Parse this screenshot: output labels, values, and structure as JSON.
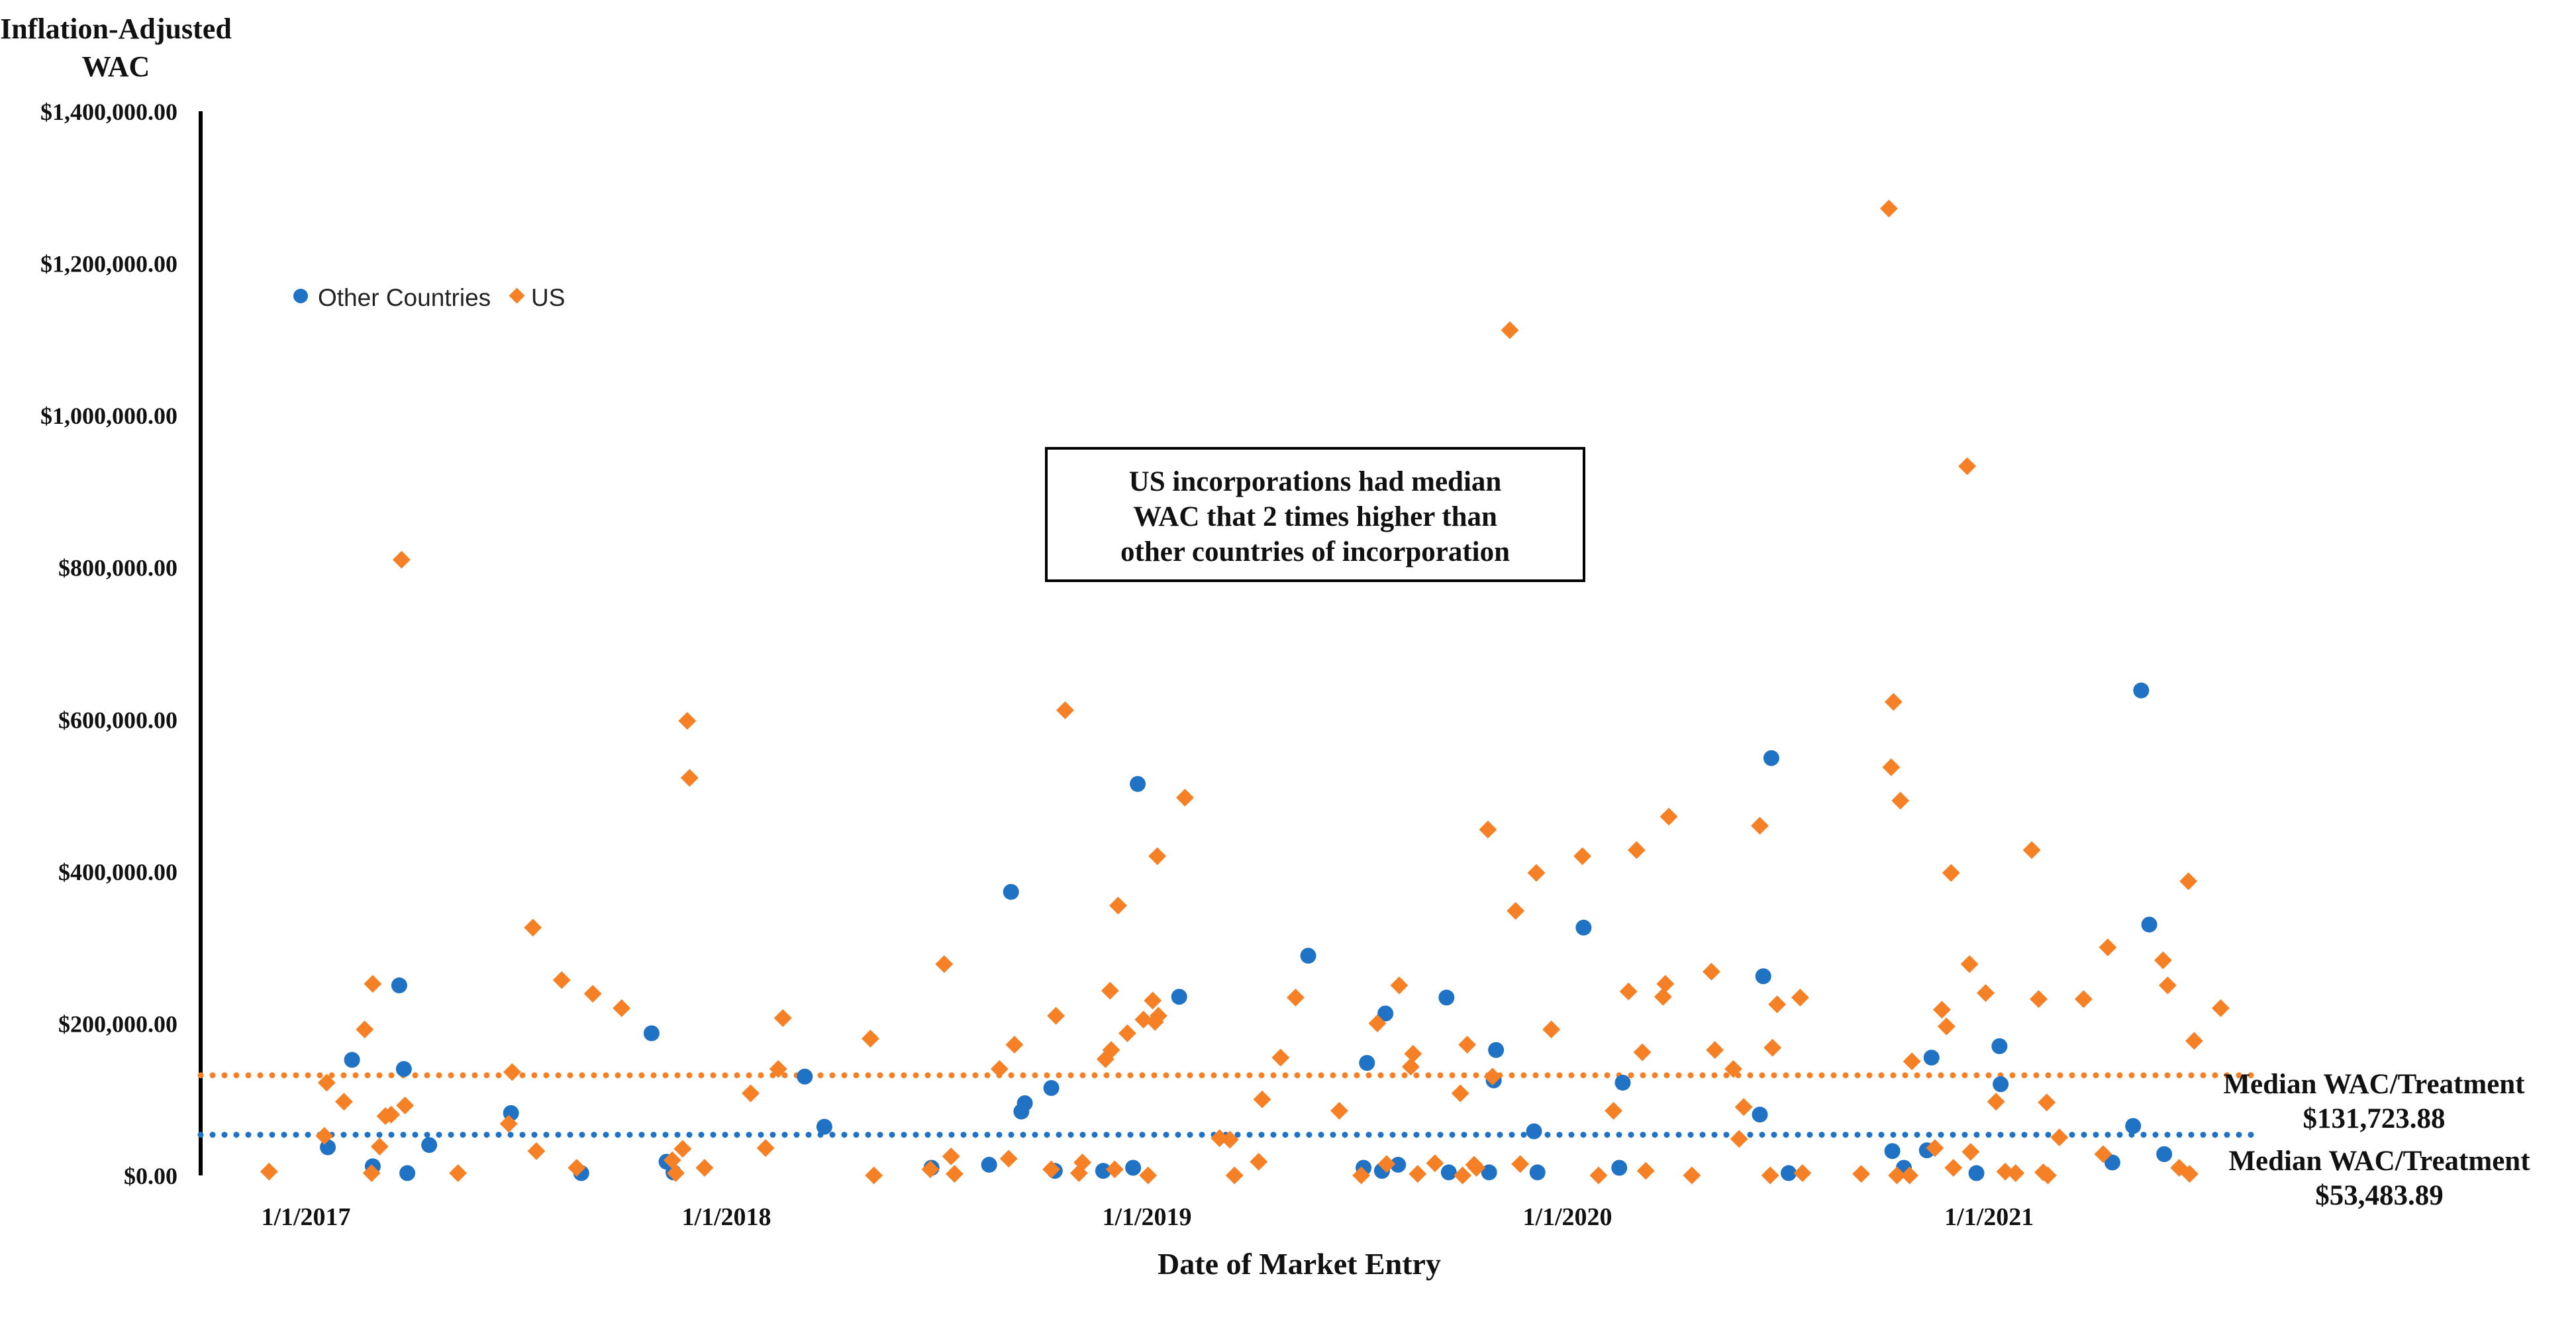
{
  "chart_data": {
    "type": "scatter",
    "title": "",
    "ylabel": "Inflation-Adjusted WAC",
    "ylabel_lines": [
      "Inflation-Adjusted",
      "WAC"
    ],
    "xlabel": "Date of Market Entry",
    "ylim": [
      0,
      1400000
    ],
    "xlim": [
      "2016-08-01",
      "2021-10-01"
    ],
    "y_ticks": [
      {
        "value": 0,
        "label": "$0.00"
      },
      {
        "value": 200000,
        "label": "$200,000.00"
      },
      {
        "value": 400000,
        "label": "$400,000.00"
      },
      {
        "value": 600000,
        "label": "$600,000.00"
      },
      {
        "value": 800000,
        "label": "$800,000.00"
      },
      {
        "value": 1000000,
        "label": "$1,000,000.00"
      },
      {
        "value": 1200000,
        "label": "$1,200,000.00"
      },
      {
        "value": 1400000,
        "label": "$1,400,000.00"
      }
    ],
    "x_ticks": [
      {
        "value": "2017-01-01",
        "label": "1/1/2017"
      },
      {
        "value": "2018-01-01",
        "label": "1/1/2018"
      },
      {
        "value": "2019-01-01",
        "label": "1/1/2019"
      },
      {
        "value": "2020-01-01",
        "label": "1/1/2020"
      },
      {
        "value": "2021-01-01",
        "label": "1/1/2021"
      }
    ],
    "legend": {
      "placement": "top-left",
      "entries": [
        "Other Countries",
        "US"
      ]
    },
    "annotation": {
      "lines": [
        "US incorporations had median",
        "WAC that  2 times  higher than",
        "other countries of incorporation"
      ]
    },
    "median_lines": [
      {
        "series": "US",
        "value": 131723.88,
        "label_line1": "Median WAC/Treatment",
        "label_line2": "$131,723.88"
      },
      {
        "series": "Other Countries",
        "value": 53483.89,
        "label_line1": "Median WAC/Treatment",
        "label_line2": "$53,483.89"
      }
    ],
    "series": [
      {
        "name": "Other Countries",
        "color": "#1f72c4",
        "marker": "circle",
        "points": [
          {
            "x": "2017-01-20",
            "y": 37000
          },
          {
            "x": "2017-02-10",
            "y": 152000
          },
          {
            "x": "2017-02-28",
            "y": 12000
          },
          {
            "x": "2017-03-23",
            "y": 250000
          },
          {
            "x": "2017-03-27",
            "y": 140000
          },
          {
            "x": "2017-03-30",
            "y": 3000
          },
          {
            "x": "2017-04-18",
            "y": 40000
          },
          {
            "x": "2017-06-28",
            "y": 82000
          },
          {
            "x": "2017-08-28",
            "y": 3000
          },
          {
            "x": "2017-10-28",
            "y": 187000
          },
          {
            "x": "2017-11-10",
            "y": 18000
          },
          {
            "x": "2017-11-16",
            "y": 4000
          },
          {
            "x": "2018-03-10",
            "y": 130000
          },
          {
            "x": "2018-03-27",
            "y": 64000
          },
          {
            "x": "2018-06-28",
            "y": 10000
          },
          {
            "x": "2018-08-17",
            "y": 14000
          },
          {
            "x": "2018-09-05",
            "y": 373000
          },
          {
            "x": "2018-09-14",
            "y": 84000
          },
          {
            "x": "2018-09-17",
            "y": 95000
          },
          {
            "x": "2018-10-10",
            "y": 115000
          },
          {
            "x": "2018-10-13",
            "y": 6000
          },
          {
            "x": "2018-11-24",
            "y": 6000
          },
          {
            "x": "2018-12-20",
            "y": 10000
          },
          {
            "x": "2018-12-24",
            "y": 515000
          },
          {
            "x": "2019-01-29",
            "y": 235000
          },
          {
            "x": "2019-05-21",
            "y": 289000
          },
          {
            "x": "2019-07-08",
            "y": 10000
          },
          {
            "x": "2019-07-11",
            "y": 148000
          },
          {
            "x": "2019-07-24",
            "y": 6000
          },
          {
            "x": "2019-07-27",
            "y": 213000
          },
          {
            "x": "2019-08-07",
            "y": 14000
          },
          {
            "x": "2019-09-18",
            "y": 234000
          },
          {
            "x": "2019-09-20",
            "y": 4000
          },
          {
            "x": "2019-10-25",
            "y": 4000
          },
          {
            "x": "2019-10-29",
            "y": 125000
          },
          {
            "x": "2019-10-31",
            "y": 165000
          },
          {
            "x": "2019-12-03",
            "y": 58000
          },
          {
            "x": "2019-12-06",
            "y": 4000
          },
          {
            "x": "2020-01-15",
            "y": 326000
          },
          {
            "x": "2020-02-15",
            "y": 10000
          },
          {
            "x": "2020-02-18",
            "y": 122000
          },
          {
            "x": "2020-06-16",
            "y": 80000
          },
          {
            "x": "2020-06-19",
            "y": 262000
          },
          {
            "x": "2020-06-26",
            "y": 549000
          },
          {
            "x": "2020-07-11",
            "y": 3000
          },
          {
            "x": "2020-10-09",
            "y": 32000
          },
          {
            "x": "2020-10-19",
            "y": 10000
          },
          {
            "x": "2020-11-08",
            "y": 33000
          },
          {
            "x": "2020-11-12",
            "y": 155000
          },
          {
            "x": "2020-12-21",
            "y": 3000
          },
          {
            "x": "2021-01-10",
            "y": 170000
          },
          {
            "x": "2021-01-11",
            "y": 120000
          },
          {
            "x": "2021-04-18",
            "y": 17000
          },
          {
            "x": "2021-05-06",
            "y": 65000
          },
          {
            "x": "2021-05-13",
            "y": 638000
          },
          {
            "x": "2021-05-20",
            "y": 330000
          },
          {
            "x": "2021-06-02",
            "y": 28000
          }
        ]
      },
      {
        "name": "US",
        "color": "#f58025",
        "marker": "diamond",
        "points": [
          {
            "x": "2016-11-30",
            "y": 5000
          },
          {
            "x": "2017-01-17",
            "y": 52000
          },
          {
            "x": "2017-01-19",
            "y": 122000
          },
          {
            "x": "2017-02-03",
            "y": 97000
          },
          {
            "x": "2017-02-21",
            "y": 192000
          },
          {
            "x": "2017-02-27",
            "y": 3000
          },
          {
            "x": "2017-02-28",
            "y": 252000
          },
          {
            "x": "2017-03-06",
            "y": 38000
          },
          {
            "x": "2017-03-11",
            "y": 78000
          },
          {
            "x": "2017-03-16",
            "y": 80000
          },
          {
            "x": "2017-03-25",
            "y": 810000
          },
          {
            "x": "2017-03-28",
            "y": 92000
          },
          {
            "x": "2017-05-13",
            "y": 3000
          },
          {
            "x": "2017-06-26",
            "y": 68000
          },
          {
            "x": "2017-06-29",
            "y": 136000
          },
          {
            "x": "2017-07-17",
            "y": 326000
          },
          {
            "x": "2017-07-20",
            "y": 32000
          },
          {
            "x": "2017-08-11",
            "y": 257000
          },
          {
            "x": "2017-08-24",
            "y": 10000
          },
          {
            "x": "2017-09-07",
            "y": 239000
          },
          {
            "x": "2017-10-02",
            "y": 220000
          },
          {
            "x": "2017-11-15",
            "y": 20000
          },
          {
            "x": "2017-11-18",
            "y": 3000
          },
          {
            "x": "2017-11-24",
            "y": 35000
          },
          {
            "x": "2017-11-28",
            "y": 598000
          },
          {
            "x": "2017-11-30",
            "y": 523000
          },
          {
            "x": "2017-12-13",
            "y": 10000
          },
          {
            "x": "2018-01-22",
            "y": 108000
          },
          {
            "x": "2018-02-04",
            "y": 36000
          },
          {
            "x": "2018-02-15",
            "y": 140000
          },
          {
            "x": "2018-02-19",
            "y": 207000
          },
          {
            "x": "2018-05-06",
            "y": 180000
          },
          {
            "x": "2018-05-09",
            "y": 0
          },
          {
            "x": "2018-06-27",
            "y": 8000
          },
          {
            "x": "2018-07-09",
            "y": 278000
          },
          {
            "x": "2018-07-15",
            "y": 25000
          },
          {
            "x": "2018-07-18",
            "y": 2000
          },
          {
            "x": "2018-08-26",
            "y": 140000
          },
          {
            "x": "2018-09-03",
            "y": 22000
          },
          {
            "x": "2018-09-08",
            "y": 172000
          },
          {
            "x": "2018-10-10",
            "y": 8000
          },
          {
            "x": "2018-10-14",
            "y": 210000
          },
          {
            "x": "2018-10-22",
            "y": 612000
          },
          {
            "x": "2018-11-03",
            "y": 3000
          },
          {
            "x": "2018-11-06",
            "y": 17000
          },
          {
            "x": "2018-11-26",
            "y": 153000
          },
          {
            "x": "2018-11-30",
            "y": 243000
          },
          {
            "x": "2018-12-01",
            "y": 165000
          },
          {
            "x": "2018-12-04",
            "y": 8000
          },
          {
            "x": "2018-12-07",
            "y": 355000
          },
          {
            "x": "2018-12-15",
            "y": 187000
          },
          {
            "x": "2018-12-29",
            "y": 205000
          },
          {
            "x": "2019-01-02",
            "y": 0
          },
          {
            "x": "2019-01-06",
            "y": 230000
          },
          {
            "x": "2019-01-08",
            "y": 202000
          },
          {
            "x": "2019-01-10",
            "y": 420000
          },
          {
            "x": "2019-01-11",
            "y": 210000
          },
          {
            "x": "2019-02-03",
            "y": 497000
          },
          {
            "x": "2019-03-05",
            "y": 49000
          },
          {
            "x": "2019-03-14",
            "y": 47000
          },
          {
            "x": "2019-03-18",
            "y": 0
          },
          {
            "x": "2019-04-08",
            "y": 18000
          },
          {
            "x": "2019-04-11",
            "y": 100000
          },
          {
            "x": "2019-04-27",
            "y": 155000
          },
          {
            "x": "2019-05-10",
            "y": 234000
          },
          {
            "x": "2019-06-17",
            "y": 85000
          },
          {
            "x": "2019-07-06",
            "y": 0
          },
          {
            "x": "2019-07-20",
            "y": 200000
          },
          {
            "x": "2019-07-28",
            "y": 15000
          },
          {
            "x": "2019-08-08",
            "y": 250000
          },
          {
            "x": "2019-08-18",
            "y": 143000
          },
          {
            "x": "2019-08-20",
            "y": 160000
          },
          {
            "x": "2019-08-24",
            "y": 2000
          },
          {
            "x": "2019-09-08",
            "y": 16000
          },
          {
            "x": "2019-09-30",
            "y": 108000
          },
          {
            "x": "2019-10-02",
            "y": 0
          },
          {
            "x": "2019-10-06",
            "y": 172000
          },
          {
            "x": "2019-10-12",
            "y": 14000
          },
          {
            "x": "2019-10-14",
            "y": 10000
          },
          {
            "x": "2019-10-24",
            "y": 455000
          },
          {
            "x": "2019-10-28",
            "y": 130000
          },
          {
            "x": "2019-11-12",
            "y": 1112000
          },
          {
            "x": "2019-11-17",
            "y": 348000
          },
          {
            "x": "2019-11-21",
            "y": 15000
          },
          {
            "x": "2019-12-05",
            "y": 398000
          },
          {
            "x": "2019-12-18",
            "y": 192000
          },
          {
            "x": "2020-01-14",
            "y": 420000
          },
          {
            "x": "2020-01-28",
            "y": 0
          },
          {
            "x": "2020-02-10",
            "y": 85000
          },
          {
            "x": "2020-02-23",
            "y": 242000
          },
          {
            "x": "2020-03-01",
            "y": 428000
          },
          {
            "x": "2020-03-06",
            "y": 162000
          },
          {
            "x": "2020-03-09",
            "y": 6000
          },
          {
            "x": "2020-03-24",
            "y": 235000
          },
          {
            "x": "2020-03-26",
            "y": 252000
          },
          {
            "x": "2020-03-29",
            "y": 472000
          },
          {
            "x": "2020-04-18",
            "y": 0
          },
          {
            "x": "2020-05-05",
            "y": 268000
          },
          {
            "x": "2020-05-08",
            "y": 165000
          },
          {
            "x": "2020-05-24",
            "y": 140000
          },
          {
            "x": "2020-05-29",
            "y": 48000
          },
          {
            "x": "2020-06-02",
            "y": 90000
          },
          {
            "x": "2020-06-16",
            "y": 460000
          },
          {
            "x": "2020-06-25",
            "y": 0
          },
          {
            "x": "2020-06-27",
            "y": 168000
          },
          {
            "x": "2020-07-01",
            "y": 225000
          },
          {
            "x": "2020-07-21",
            "y": 234000
          },
          {
            "x": "2020-07-23",
            "y": 3000
          },
          {
            "x": "2020-09-12",
            "y": 2000
          },
          {
            "x": "2020-10-06",
            "y": 1272000
          },
          {
            "x": "2020-10-08",
            "y": 537000
          },
          {
            "x": "2020-10-10",
            "y": 623000
          },
          {
            "x": "2020-10-13",
            "y": 0
          },
          {
            "x": "2020-10-16",
            "y": 493000
          },
          {
            "x": "2020-10-24",
            "y": 0
          },
          {
            "x": "2020-10-26",
            "y": 150000
          },
          {
            "x": "2020-11-15",
            "y": 36000
          },
          {
            "x": "2020-11-21",
            "y": 218000
          },
          {
            "x": "2020-11-25",
            "y": 196000
          },
          {
            "x": "2020-11-29",
            "y": 398000
          },
          {
            "x": "2020-12-01",
            "y": 10000
          },
          {
            "x": "2020-12-13",
            "y": 933000
          },
          {
            "x": "2020-12-15",
            "y": 278000
          },
          {
            "x": "2020-12-16",
            "y": 31000
          },
          {
            "x": "2020-12-29",
            "y": 240000
          },
          {
            "x": "2021-01-07",
            "y": 97000
          },
          {
            "x": "2021-01-15",
            "y": 5000
          },
          {
            "x": "2021-01-24",
            "y": 3000
          },
          {
            "x": "2021-02-07",
            "y": 428000
          },
          {
            "x": "2021-02-13",
            "y": 232000
          },
          {
            "x": "2021-02-17",
            "y": 4000
          },
          {
            "x": "2021-02-20",
            "y": 96000
          },
          {
            "x": "2021-02-21",
            "y": 0
          },
          {
            "x": "2021-03-03",
            "y": 50000
          },
          {
            "x": "2021-03-24",
            "y": 232000
          },
          {
            "x": "2021-04-10",
            "y": 28000
          },
          {
            "x": "2021-04-14",
            "y": 300000
          },
          {
            "x": "2021-06-01",
            "y": 283000
          },
          {
            "x": "2021-06-05",
            "y": 250000
          },
          {
            "x": "2021-06-15",
            "y": 10000
          },
          {
            "x": "2021-06-23",
            "y": 387000
          },
          {
            "x": "2021-06-24",
            "y": 2000
          },
          {
            "x": "2021-06-28",
            "y": 177000
          },
          {
            "x": "2021-07-21",
            "y": 220000
          }
        ]
      }
    ]
  }
}
